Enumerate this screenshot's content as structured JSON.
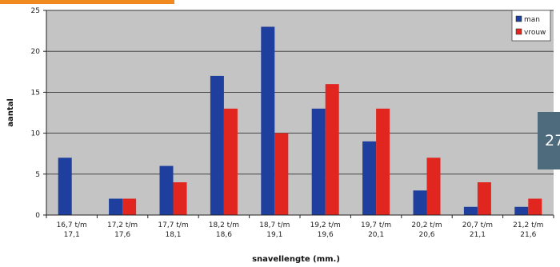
{
  "page": {
    "tab_text": "27"
  },
  "chart_data": {
    "type": "bar",
    "title": "",
    "xlabel": "snavellengte (mm.)",
    "ylabel": "aantal",
    "ylim": [
      0,
      25
    ],
    "yticks": [
      0,
      5,
      10,
      15,
      20,
      25
    ],
    "grid": true,
    "legend_position": "top-right",
    "categories": [
      [
        "16,7 t/m",
        "17,1"
      ],
      [
        "17,2 t/m",
        "17,6"
      ],
      [
        "17,7 t/m",
        "18,1"
      ],
      [
        "18,2 t/m",
        "18,6"
      ],
      [
        "18,7 t/m",
        "19,1"
      ],
      [
        "19,2 t/m",
        "19,6"
      ],
      [
        "19,7 t/m",
        "20,1"
      ],
      [
        "20,2 t/m",
        "20,6"
      ],
      [
        "20,7 t/m",
        "21,1"
      ],
      [
        "21,2 t/m",
        "21,6"
      ]
    ],
    "series": [
      {
        "name": "man",
        "color": "#1f3f9e",
        "values": [
          7,
          2,
          6,
          17,
          23,
          13,
          9,
          3,
          1,
          1
        ]
      },
      {
        "name": "vrouw",
        "color": "#e0261f",
        "values": [
          0,
          2,
          4,
          13,
          10,
          16,
          13,
          7,
          4,
          2
        ]
      }
    ]
  }
}
